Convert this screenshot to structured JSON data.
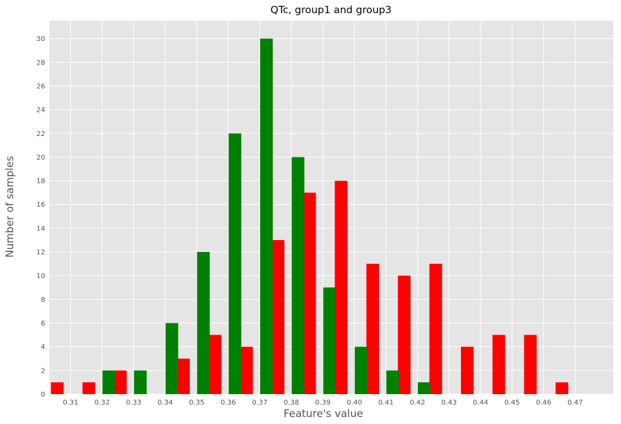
{
  "chart_data": {
    "type": "bar",
    "title": "QTc, group1 and group3",
    "xlabel": "Feature's value",
    "ylabel": "Number of samples",
    "categories": [
      "0.31",
      "0.32",
      "0.33",
      "0.34",
      "0.35",
      "0.36",
      "0.37",
      "0.38",
      "0.39",
      "0.40",
      "0.41",
      "0.42",
      "0.43",
      "0.44",
      "0.45",
      "0.46",
      "0.47"
    ],
    "yticks": [
      "0",
      "2",
      "4",
      "6",
      "8",
      "10",
      "12",
      "14",
      "16",
      "18",
      "20",
      "22",
      "24",
      "26",
      "28",
      "30"
    ],
    "ylim": [
      0,
      31.5
    ],
    "grid": true,
    "series": [
      {
        "color": "#ff0000",
        "values": [
          1,
          1,
          2,
          0,
          3,
          5,
          4,
          13,
          17,
          18,
          11,
          10,
          11,
          4,
          5,
          5,
          1
        ]
      },
      {
        "color": "#008000",
        "values": [
          0,
          2,
          2,
          6,
          12,
          22,
          30,
          20,
          9,
          4,
          2,
          1,
          0,
          0,
          0,
          0,
          0
        ]
      }
    ]
  }
}
